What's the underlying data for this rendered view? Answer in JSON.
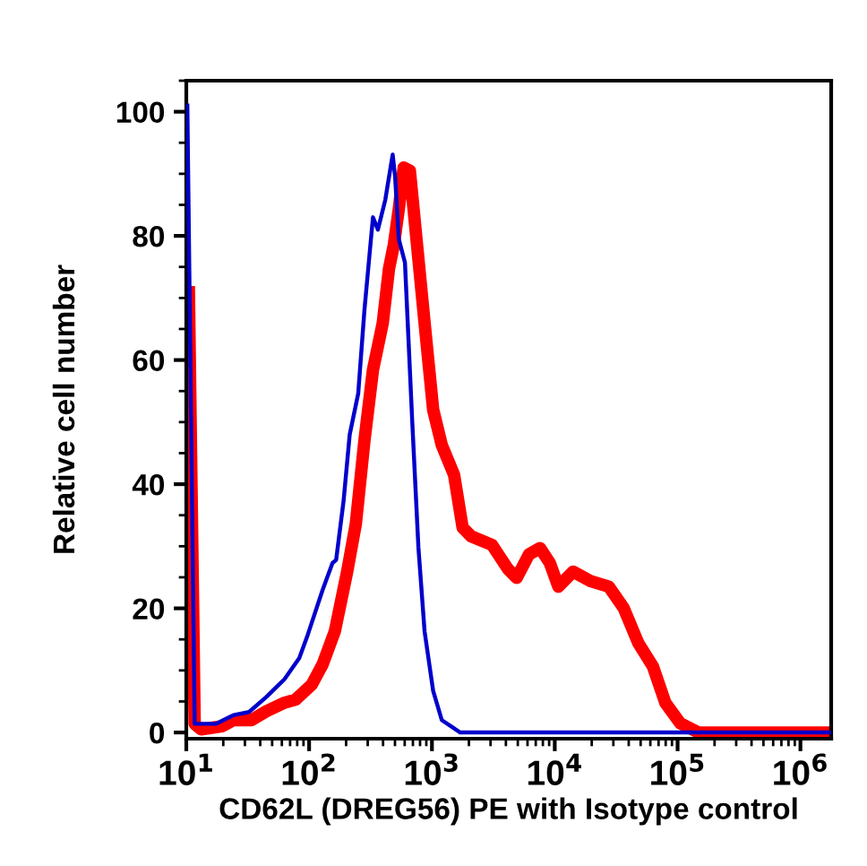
{
  "chart_data": {
    "type": "line",
    "xlabel": "CD62L (DREG56) PE with Isotype control",
    "ylabel": "Relative cell number",
    "log": "x",
    "grid": false,
    "legend": false,
    "marker": "none",
    "line_style": "solid",
    "xlim": [
      10,
      1780000
    ],
    "xticks": [
      {
        "value": 10,
        "label": "10$^{1}$"
      },
      {
        "value": 100,
        "label": "10$^{2}$"
      },
      {
        "value": 1000,
        "label": "10$^{3}$"
      },
      {
        "value": 10000,
        "label": "10$^{4}$"
      },
      {
        "value": 100000,
        "label": "10$^{5}$"
      },
      {
        "value": 1000000,
        "label": "10$^{6}$"
      }
    ],
    "ylim": [
      -1,
      105
    ],
    "yticks": [
      0,
      20,
      40,
      60,
      80,
      100
    ],
    "series": [
      {
        "color": "#0000cc",
        "x": [
          10.2,
          11.7,
          17.4,
          24.3,
          32.4,
          44.7,
          63.1,
          83.2,
          97.7,
          129,
          155,
          166,
          191,
          214,
          251,
          282,
          309,
          331,
          363,
          417,
          479,
          501,
          537,
          603,
          692,
          776,
          871,
          1023,
          1202,
          1698,
          1740000
        ],
        "values": [
          101,
          1.4,
          1.4,
          2.8,
          3.3,
          5.7,
          8.6,
          12,
          15.8,
          23,
          27.3,
          27.8,
          37.4,
          48,
          54.6,
          68,
          76.6,
          83,
          81,
          85.8,
          93.1,
          89.6,
          79.5,
          75.7,
          49.9,
          29.8,
          16.3,
          6.7,
          2,
          0,
          0
        ]
      },
      {
        "color": "#ff0000",
        "x": [
          10.5,
          11.7,
          13.2,
          19.5,
          24.3,
          33.9,
          44.7,
          63.1,
          77.6,
          105,
          129,
          162,
          204,
          240,
          282,
          331,
          398,
          447,
          490,
          537,
          589,
          661,
          724,
          871,
          1023,
          1202,
          1514,
          1778,
          2089,
          3090,
          4169,
          4898,
          6166,
          7586,
          9120,
          10700,
          14100,
          19500,
          27500,
          36300,
          47900,
          63100,
          79400,
          105000,
          148000,
          1700000
        ],
        "values": [
          70.9,
          1.4,
          0.5,
          1,
          2,
          2,
          3.4,
          4.8,
          5.3,
          7.7,
          11,
          16.3,
          25.9,
          33.6,
          47,
          58.4,
          66,
          74.7,
          78.6,
          84.3,
          91,
          90.5,
          82.4,
          66,
          52,
          46.3,
          41.5,
          33,
          31.6,
          30.2,
          26.3,
          24.9,
          28.7,
          29.7,
          27.3,
          23.5,
          25.9,
          24.4,
          23.5,
          20.1,
          14.4,
          10.6,
          4.8,
          1.5,
          0,
          0
        ]
      }
    ]
  }
}
